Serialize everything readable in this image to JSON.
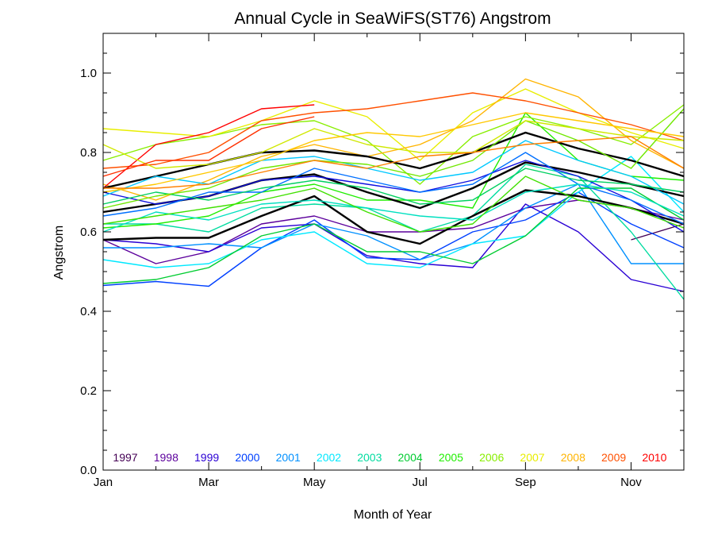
{
  "chart_data": {
    "type": "line",
    "title": "Annual Cycle in SeaWiFS(ST76) Angstrom",
    "xlabel": "Month of Year",
    "ylabel": "Angstrom",
    "xlim": [
      1,
      12
    ],
    "ylim": [
      0.0,
      1.1
    ],
    "x_tick_labels": [
      "Jan",
      "Mar",
      "May",
      "Jul",
      "Sep",
      "Nov"
    ],
    "x_tick_values": [
      1,
      3,
      5,
      7,
      9,
      11
    ],
    "y_tick_labels": [
      "0.0",
      "0.2",
      "0.4",
      "0.6",
      "0.8",
      "1.0"
    ],
    "y_tick_values": [
      0.0,
      0.2,
      0.4,
      0.6,
      0.8,
      1.0
    ],
    "grid": false,
    "legend_position": "bottom-inside",
    "x": [
      1,
      2,
      3,
      4,
      5,
      6,
      7,
      8,
      9,
      10,
      11,
      12
    ],
    "series": [
      {
        "name": "1997",
        "color": "#440054",
        "values": [
          null,
          null,
          null,
          null,
          null,
          null,
          null,
          null,
          null,
          null,
          0.58,
          0.62
        ]
      },
      {
        "name": "1998",
        "color": "#5c009c",
        "values": [
          0.58,
          0.52,
          0.55,
          0.62,
          0.64,
          0.6,
          0.6,
          0.61,
          0.66,
          0.68,
          0.66,
          0.63
        ]
      },
      {
        "name": "1999",
        "color": "#2a00d4",
        "values": [
          0.58,
          0.57,
          0.55,
          0.61,
          0.62,
          0.54,
          0.52,
          0.51,
          0.67,
          0.6,
          0.48,
          0.45
        ]
      },
      {
        "name": "2000",
        "color": "#0040ff",
        "values": [
          0.465,
          0.475,
          0.463,
          0.56,
          0.63,
          0.535,
          0.53,
          0.6,
          0.63,
          0.7,
          0.62,
          0.56
        ]
      },
      {
        "name": "2001",
        "color": "#0090ff",
        "values": [
          0.56,
          0.56,
          0.57,
          0.56,
          0.62,
          0.59,
          0.53,
          0.57,
          0.66,
          0.72,
          0.52,
          0.52
        ]
      },
      {
        "name": "2002",
        "color": "#00e8ff",
        "values": [
          0.53,
          0.51,
          0.52,
          0.58,
          0.6,
          0.52,
          0.51,
          0.57,
          0.59,
          0.7,
          0.79,
          0.65
        ]
      },
      {
        "name": "2003",
        "color": "#00dca0",
        "values": [
          0.62,
          0.62,
          0.6,
          0.66,
          0.67,
          0.66,
          0.6,
          0.64,
          0.77,
          0.74,
          0.6,
          0.43
        ]
      },
      {
        "name": "2004",
        "color": "#00cc30",
        "values": [
          0.47,
          0.48,
          0.51,
          0.59,
          0.62,
          0.55,
          0.55,
          0.52,
          0.59,
          0.71,
          0.71,
          0.63
        ]
      },
      {
        "name": "2005",
        "color": "#20ee00",
        "values": [
          0.61,
          0.62,
          0.64,
          0.7,
          0.72,
          0.68,
          0.68,
          0.66,
          0.9,
          0.78,
          0.74,
          0.73
        ]
      },
      {
        "name": "2006",
        "color": "#88ee00",
        "values": [
          0.78,
          0.82,
          0.84,
          0.87,
          0.88,
          0.83,
          0.72,
          0.84,
          0.89,
          0.86,
          0.82,
          0.92
        ]
      },
      {
        "name": "2007",
        "color": "#e8ee00",
        "values": [
          0.86,
          0.85,
          0.84,
          0.88,
          0.93,
          0.89,
          0.78,
          0.9,
          0.96,
          0.9,
          0.85,
          0.81
        ]
      },
      {
        "name": "2008",
        "color": "#ffb400",
        "values": [
          0.72,
          0.68,
          0.73,
          0.79,
          0.82,
          0.79,
          0.82,
          0.88,
          0.985,
          0.94,
          0.83,
          0.76
        ]
      },
      {
        "name": "2009",
        "color": "#ff5000",
        "values": [
          0.76,
          0.77,
          0.8,
          0.88,
          0.9,
          0.91,
          0.93,
          0.95,
          0.93,
          0.9,
          0.87,
          0.83
        ]
      },
      {
        "name": "2010",
        "color": "#ff0000",
        "values": [
          0.71,
          0.82,
          0.85,
          0.91,
          0.92,
          null,
          null,
          null,
          null,
          null,
          null,
          null
        ]
      },
      {
        "name": "",
        "color": "#000000",
        "values": [
          0.71,
          0.74,
          0.77,
          0.8,
          0.805,
          0.79,
          0.76,
          0.8,
          0.85,
          0.81,
          0.78,
          0.74
        ]
      },
      {
        "name": "",
        "color": "#000000",
        "values": [
          0.65,
          0.67,
          0.69,
          0.73,
          0.745,
          0.7,
          0.66,
          0.71,
          0.775,
          0.75,
          0.72,
          0.69
        ]
      },
      {
        "name": "",
        "color": "#000000",
        "values": [
          0.58,
          0.585,
          0.585,
          0.64,
          0.69,
          0.6,
          0.57,
          0.64,
          0.705,
          0.69,
          0.66,
          0.62
        ]
      },
      {
        "name": "",
        "color": "#1010e0",
        "values": [
          0.7,
          0.67,
          0.69,
          0.73,
          0.74,
          0.72,
          0.7,
          0.73,
          0.78,
          0.74,
          0.68,
          0.6
        ]
      },
      {
        "name": "",
        "color": "#0070ff",
        "values": [
          0.64,
          0.66,
          0.7,
          0.7,
          0.76,
          0.73,
          0.7,
          0.72,
          0.8,
          0.72,
          0.68,
          0.62
        ]
      },
      {
        "name": "",
        "color": "#00c8ff",
        "values": [
          0.69,
          0.74,
          0.72,
          0.78,
          0.79,
          0.76,
          0.73,
          0.75,
          0.83,
          0.78,
          0.74,
          0.67
        ]
      },
      {
        "name": "",
        "color": "#00e0c0",
        "values": [
          0.6,
          0.65,
          0.63,
          0.67,
          0.68,
          0.66,
          0.64,
          0.63,
          0.7,
          0.72,
          0.7,
          0.64
        ]
      },
      {
        "name": "",
        "color": "#00d060",
        "values": [
          0.67,
          0.7,
          0.68,
          0.71,
          0.73,
          0.71,
          0.67,
          0.68,
          0.76,
          0.73,
          0.72,
          0.7
        ]
      },
      {
        "name": "",
        "color": "#40e000",
        "values": [
          0.62,
          0.64,
          0.66,
          0.68,
          0.71,
          0.65,
          0.6,
          0.62,
          0.74,
          0.68,
          0.66,
          0.61
        ]
      },
      {
        "name": "",
        "color": "#70e800",
        "values": [
          0.66,
          0.69,
          0.71,
          0.76,
          0.78,
          0.77,
          0.74,
          0.78,
          0.88,
          0.83,
          0.76,
          0.91
        ]
      },
      {
        "name": "",
        "color": "#d0e800",
        "values": [
          0.82,
          0.76,
          0.77,
          0.8,
          0.86,
          0.82,
          0.8,
          0.8,
          0.88,
          0.86,
          0.84,
          0.83
        ]
      },
      {
        "name": "",
        "color": "#ffc800",
        "values": [
          0.7,
          0.72,
          0.75,
          0.78,
          0.83,
          0.85,
          0.84,
          0.87,
          0.9,
          0.88,
          0.86,
          0.84
        ]
      },
      {
        "name": "",
        "color": "#ff8000",
        "values": [
          0.71,
          0.71,
          0.72,
          0.75,
          0.78,
          0.76,
          0.79,
          0.8,
          0.82,
          0.83,
          0.84,
          0.76
        ]
      },
      {
        "name": "",
        "color": "#ff3000",
        "values": [
          0.74,
          0.78,
          0.78,
          0.86,
          0.89,
          null,
          null,
          null,
          null,
          null,
          null,
          null
        ]
      }
    ]
  }
}
